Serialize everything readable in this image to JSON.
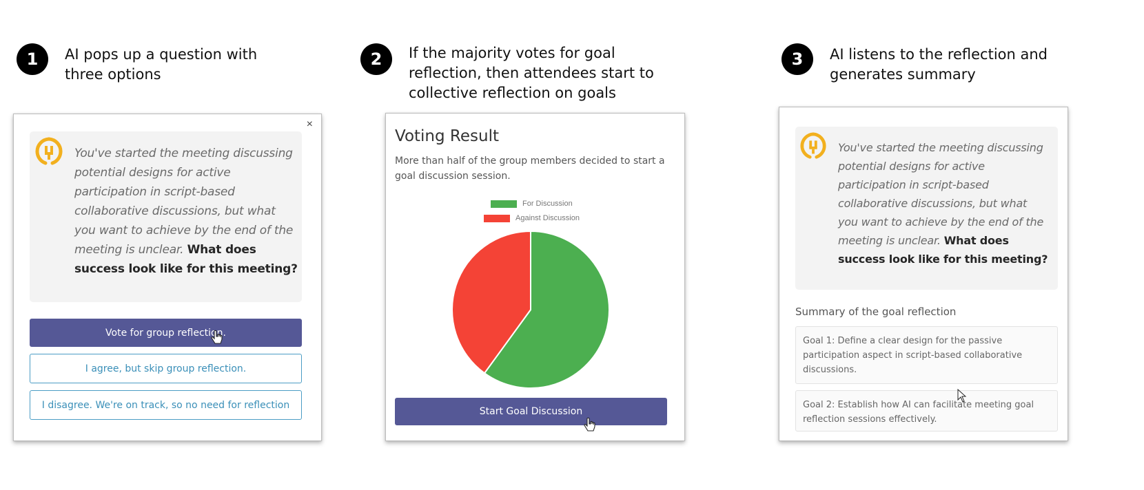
{
  "steps": [
    {
      "number": "1",
      "text_line1": "AI pops up a question with",
      "text_line2": "three options",
      "text_line3": ""
    },
    {
      "number": "2",
      "text_line1": "If the majority votes for goal",
      "text_line2": "reflection, then attendees start to",
      "text_line3": "collective reflection on goals"
    },
    {
      "number": "3",
      "text_line1": "AI listens to the reflection and",
      "text_line2": "generates summary",
      "text_line3": ""
    }
  ],
  "panel1": {
    "close": "×",
    "message": {
      "lines": [
        "You've started the meeting discussing",
        "potential designs for active",
        "participation in script-based",
        "collaborative discussions, but what",
        "you want to achieve by the end of the",
        "meeting is unclear."
      ],
      "question_part1": "What does",
      "question_part2": "success look like for this meeting?"
    },
    "buttons": {
      "vote": "Vote for group reflection.",
      "agree_skip": "I agree, but skip group reflection.",
      "disagree": "I disagree. We're on track, so no need for reflection"
    }
  },
  "panel2": {
    "title": "Voting Result",
    "description": "More than half of the group members decided to start a goal discussion session.",
    "start_button": "Start Goal Discussion"
  },
  "panel3": {
    "message": {
      "lines": [
        "You've started the meeting discussing",
        "potential designs for active",
        "participation in script-based",
        "collaborative discussions, but what",
        "you want to achieve by the end of the",
        "meeting is unclear."
      ],
      "question_part1": "What does",
      "question_part2": "success look like for this meeting?"
    },
    "summary_title": "Summary of the goal reflection",
    "goals": [
      "Goal 1: Define a clear design for the passive participation aspect in script-based collaborative discussions.",
      "Goal 2: Establish how AI can facilitate meeting goal reflection sessions effectively."
    ]
  },
  "chart_data": {
    "type": "pie",
    "title": "",
    "legend": [
      "For Discussion",
      "Against Discussion"
    ],
    "legend_position": "top",
    "slices": [
      {
        "label": "For Discussion",
        "value": 60,
        "color": "#4caf50"
      },
      {
        "label": "Against Discussion",
        "value": 40,
        "color": "#f44336"
      }
    ]
  },
  "colors": {
    "primary_button": "#555896",
    "outline_button": "#4a9cc4",
    "ai_logo": "#f2b01e"
  },
  "icons": {
    "logo": "ai-assistant-logo-icon",
    "close": "close-icon",
    "cursor_pointer": "hand-pointer-icon",
    "cursor_arrow": "arrow-cursor-icon"
  }
}
